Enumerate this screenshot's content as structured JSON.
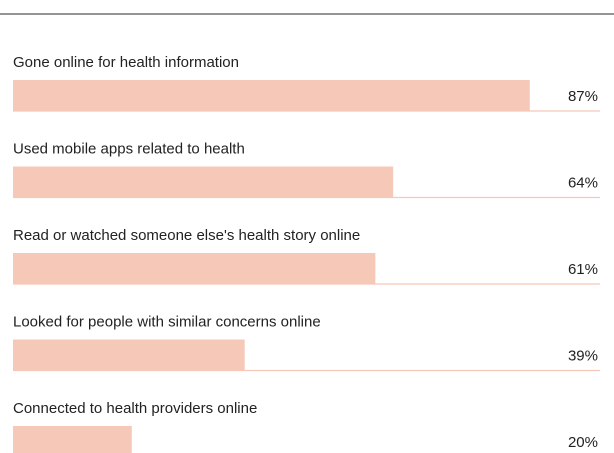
{
  "chart_data": {
    "type": "bar",
    "categories": [
      "Gone online for health information",
      "Used mobile apps related to health",
      "Read or watched someone else's health story online",
      "Looked for people with similar concerns online",
      "Connected to health providers online"
    ],
    "values": [
      87,
      64,
      61,
      39,
      20
    ],
    "value_labels": [
      "87%",
      "64%",
      "61%",
      "39%",
      "20%"
    ],
    "color": "#f6c8b8"
  }
}
